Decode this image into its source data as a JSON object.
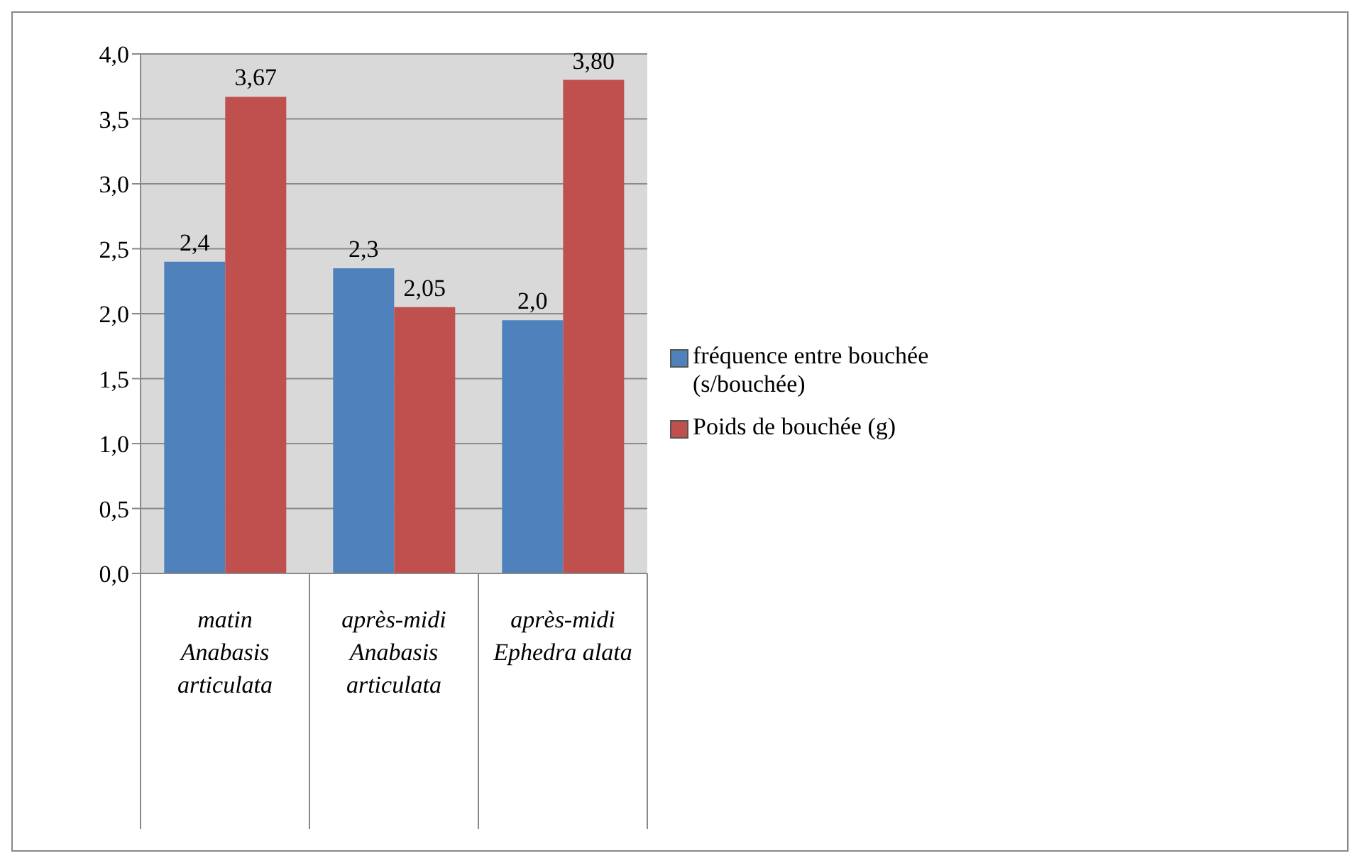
{
  "chart_data": {
    "type": "bar",
    "categories": [
      "matin\nAnabasis articulata",
      "après-midi\nAnabasis articulata",
      "après-midi\nEphedra alata"
    ],
    "series": [
      {
        "name": "fréquence entre bouchée (s/bouchée)",
        "color": "#4f81bd",
        "values": [
          2.4,
          2.35,
          1.95
        ],
        "value_labels": [
          "2,4",
          "2,3",
          "2,0"
        ]
      },
      {
        "name": "Poids de bouchée (g)",
        "color": "#c0504d",
        "values": [
          3.67,
          2.05,
          3.8
        ],
        "value_labels": [
          "3,67",
          "2,05",
          "3,80"
        ]
      }
    ],
    "ylim": [
      0,
      4
    ],
    "yticks": [
      {
        "value": 0,
        "label": "0,0"
      },
      {
        "value": 0.5,
        "label": "0,5"
      },
      {
        "value": 1,
        "label": "1,0"
      },
      {
        "value": 1.5,
        "label": "1,5"
      },
      {
        "value": 2,
        "label": "2,0"
      },
      {
        "value": 2.5,
        "label": "2,5"
      },
      {
        "value": 3,
        "label": "3,0"
      },
      {
        "value": 3.5,
        "label": "3,5"
      },
      {
        "value": 4,
        "label": "4,0"
      }
    ],
    "grid": "y",
    "legend": "right"
  }
}
